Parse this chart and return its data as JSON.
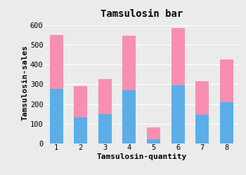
{
  "title": "Tamsulosin bar",
  "xlabel": "Tamsulosin-quantity",
  "ylabel": "Tamsulosin-sales",
  "categories": [
    1,
    2,
    3,
    4,
    5,
    6,
    7,
    8
  ],
  "blue_values": [
    275,
    130,
    150,
    270,
    20,
    295,
    145,
    210
  ],
  "pink_values": [
    275,
    160,
    175,
    275,
    60,
    290,
    170,
    215
  ],
  "blue_color": "#5BAEE8",
  "pink_color": "#F78FB3",
  "ylim": [
    0,
    620
  ],
  "yticks": [
    0,
    100,
    200,
    300,
    400,
    500,
    600
  ],
  "background_color": "#EBEBEB",
  "title_fontsize": 10,
  "label_fontsize": 8,
  "tick_fontsize": 7.5
}
